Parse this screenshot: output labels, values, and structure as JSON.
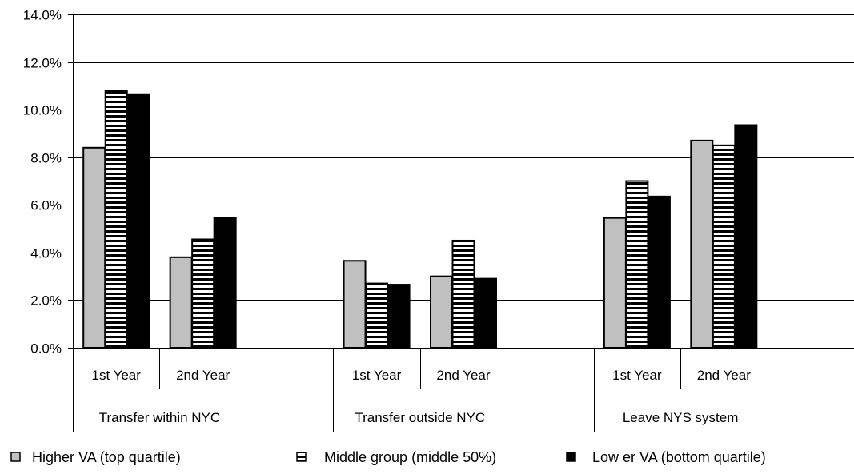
{
  "chart_data": {
    "type": "bar",
    "title": "",
    "xlabel": "",
    "ylabel": "",
    "ylim": [
      0,
      0.14
    ],
    "yticks": [
      "0.0%",
      "2.0%",
      "4.0%",
      "6.0%",
      "8.0%",
      "10.0%",
      "12.0%",
      "14.0%"
    ],
    "ytick_values": [
      0,
      0.02,
      0.04,
      0.06,
      0.08,
      0.1,
      0.12,
      0.14
    ],
    "grid": true,
    "legend_position": "bottom",
    "groups": [
      {
        "label": "Transfer within NYC",
        "subcategories": [
          "1st Year",
          "2nd Year"
        ]
      },
      {
        "label": "Transfer outside NYC",
        "subcategories": [
          "1st Year",
          "2nd Year"
        ]
      },
      {
        "label": "Leave NYS system",
        "subcategories": [
          "1st Year",
          "2nd Year"
        ]
      }
    ],
    "series": [
      {
        "name": "Higher VA (top quartile)",
        "color": "#c0c0c0",
        "pattern": "solid-gray",
        "values": [
          0.084,
          0.038,
          0.0365,
          0.03,
          0.0545,
          0.087
        ]
      },
      {
        "name": "Middle group (middle 50%)",
        "color": "#000000",
        "pattern": "horizontal-stripes",
        "values": [
          0.108,
          0.0455,
          0.027,
          0.045,
          0.07,
          0.085
        ]
      },
      {
        "name": "Low er VA  (bottom quartile)",
        "color": "#000000",
        "pattern": "solid-black",
        "values": [
          0.1065,
          0.0545,
          0.0265,
          0.029,
          0.0635,
          0.0935
        ]
      }
    ]
  }
}
